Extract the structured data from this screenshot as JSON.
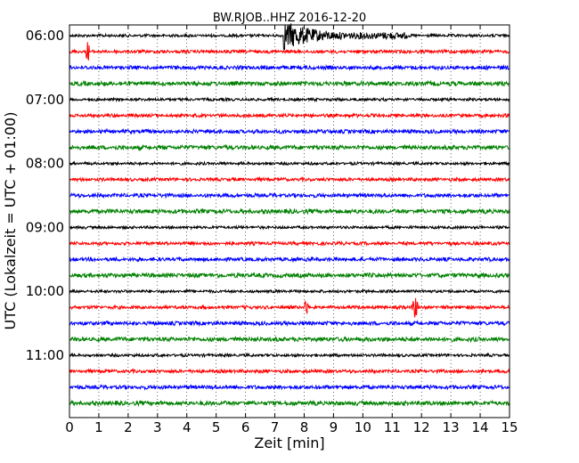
{
  "chart_data": {
    "type": "line",
    "title": "BW.RJOB..HHZ 2016-12-20",
    "xlabel": "Zeit  [min]",
    "ylabel": "UTC (Lokalzeit = UTC + 01:00)",
    "xlim": [
      0,
      15
    ],
    "x_ticks": [
      "0",
      "1",
      "2",
      "3",
      "4",
      "5",
      "6",
      "7",
      "8",
      "9",
      "10",
      "11",
      "12",
      "13",
      "14",
      "15"
    ],
    "y_ticks": [
      "06:00",
      "07:00",
      "08:00",
      "09:00",
      "10:00",
      "11:00"
    ],
    "grid": "x-dotted",
    "trace_colors": [
      "#000000",
      "#ff0000",
      "#0000ff",
      "#008000"
    ],
    "trace_start_times": [
      "06:00",
      "06:15",
      "06:30",
      "06:45",
      "07:00",
      "07:15",
      "07:30",
      "07:45",
      "08:00",
      "08:15",
      "08:30",
      "08:45",
      "09:00",
      "09:15",
      "09:30",
      "09:45",
      "10:00",
      "10:15",
      "10:30",
      "10:45",
      "11:00",
      "11:15",
      "11:30",
      "11:45"
    ],
    "events": [
      {
        "trace_start": "06:00",
        "start_min": 7.3,
        "end_min": 11.5,
        "description": "large earthquake arrival"
      },
      {
        "trace_start": "06:15",
        "start_min": 0.55,
        "end_min": 0.7,
        "description": "small spike"
      },
      {
        "trace_start": "10:15",
        "start_min": 8.0,
        "end_min": 8.15,
        "description": "small spike"
      },
      {
        "trace_start": "10:15",
        "start_min": 11.65,
        "end_min": 11.9,
        "description": "local event spike"
      }
    ]
  }
}
